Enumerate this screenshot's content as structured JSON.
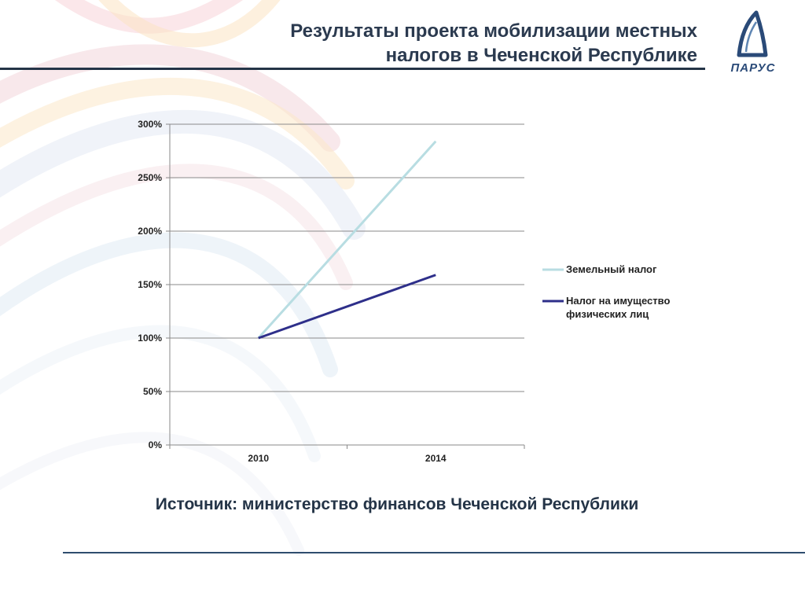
{
  "slide": {
    "title_line1": "Результаты проекта мобилизации местных",
    "title_line2": "налогов в Чеченской Республике",
    "logo_text": "ПАРУС",
    "source": "Источник: министерство финансов Чеченской Республики"
  },
  "chart_data": {
    "type": "line",
    "x": [
      "2010",
      "2014"
    ],
    "y_ticks": [
      "0%",
      "50%",
      "100%",
      "150%",
      "200%",
      "250%",
      "300%"
    ],
    "ylim": [
      0,
      300
    ],
    "grid": true,
    "legend_position": "right",
    "series": [
      {
        "name": "Земельный налог",
        "values": [
          100,
          284
        ],
        "color": "#b8dde2",
        "legend_lines": [
          "Земельный налог"
        ]
      },
      {
        "name": "Налог на имущество физических лиц",
        "values": [
          100,
          159
        ],
        "color": "#2e2f8a",
        "legend_lines": [
          "Налог на имущество",
          "физических лиц"
        ]
      }
    ]
  }
}
